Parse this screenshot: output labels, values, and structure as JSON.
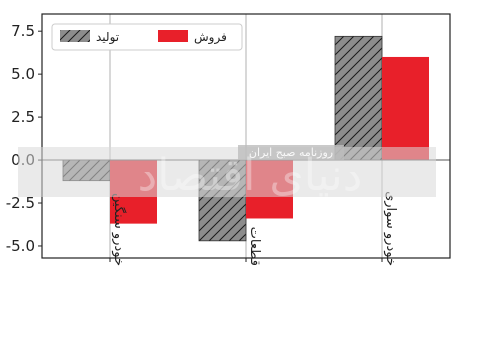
{
  "chart_data": {
    "type": "bar",
    "categories": [
      "خودرو سنگین",
      "قطعات",
      "خودرو سواری"
    ],
    "series": [
      {
        "name": "تولید",
        "values": [
          -1.2,
          -4.7,
          7.2
        ],
        "color": "#8c8c8c",
        "pattern": "hatch"
      },
      {
        "name": "فروش",
        "values": [
          -3.7,
          -3.4,
          6.0
        ],
        "color": "#e8202a",
        "pattern": "solid"
      }
    ],
    "yticks": [
      "-5.0",
      "-2.5",
      "0.0",
      "2.5",
      "5.0",
      "7.5"
    ],
    "ylim": [
      -5.7,
      8.5
    ],
    "grid": true,
    "legend": "top-left",
    "title": "",
    "xlabel": "",
    "ylabel": ""
  },
  "watermark": {
    "caption": "روزنامه صبح ایران",
    "brand": "دنیای اقتصاد"
  }
}
